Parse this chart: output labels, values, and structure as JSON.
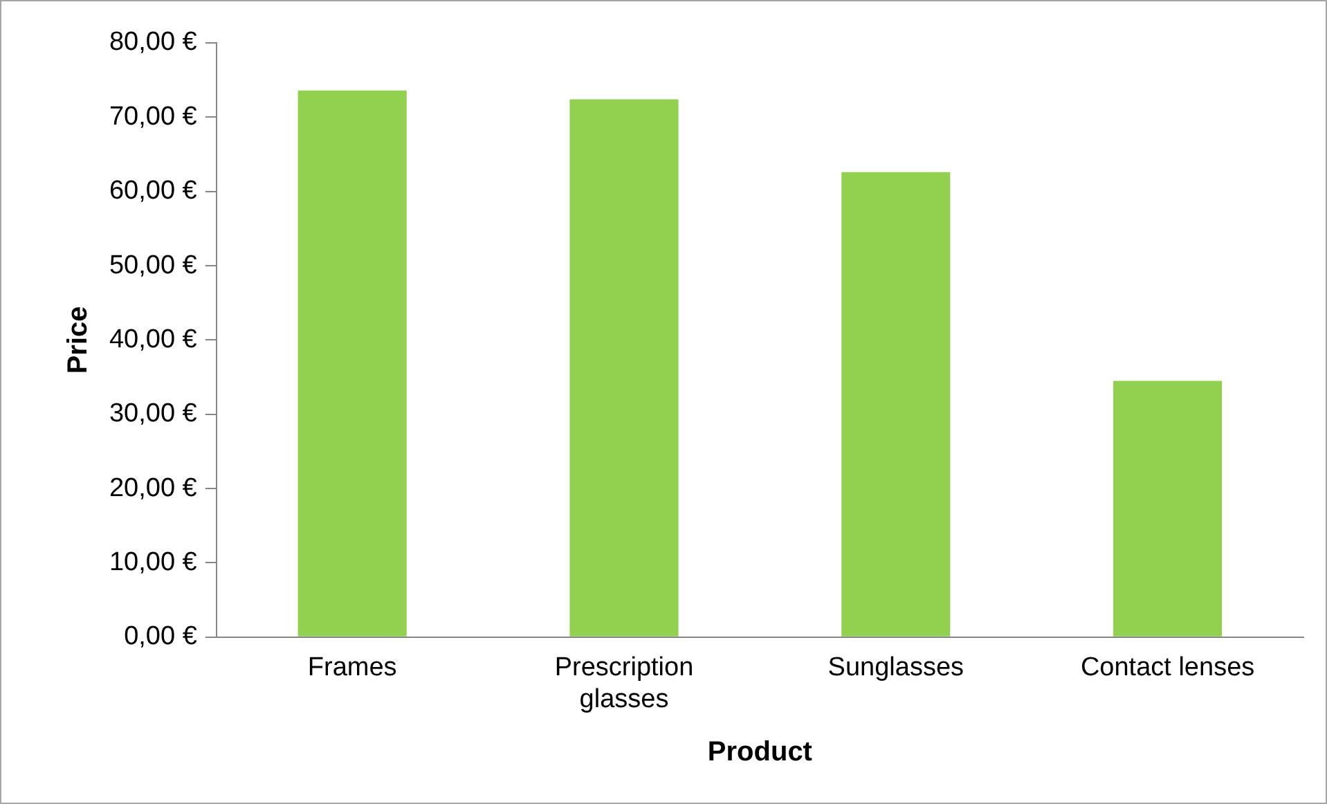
{
  "chart_data": {
    "type": "bar",
    "xlabel": "Product",
    "ylabel": "Price",
    "categories": [
      "Frames",
      "Prescription glasses",
      "Sunglasses",
      "Contact lenses"
    ],
    "values": [
      73.6,
      72.4,
      62.6,
      34.5
    ],
    "color": "#92d050",
    "ylim": [
      0,
      80
    ],
    "yticks": [
      {
        "value": 0,
        "label": "0,00 €"
      },
      {
        "value": 10,
        "label": "10,00 €"
      },
      {
        "value": 20,
        "label": "20,00 €"
      },
      {
        "value": 30,
        "label": "30,00 €"
      },
      {
        "value": 40,
        "label": "40,00 €"
      },
      {
        "value": 50,
        "label": "50,00 €"
      },
      {
        "value": 60,
        "label": "60,00 €"
      },
      {
        "value": 70,
        "label": "70,00 €"
      },
      {
        "value": 80,
        "label": "80,00 €"
      }
    ],
    "grid": false,
    "legend": false
  }
}
